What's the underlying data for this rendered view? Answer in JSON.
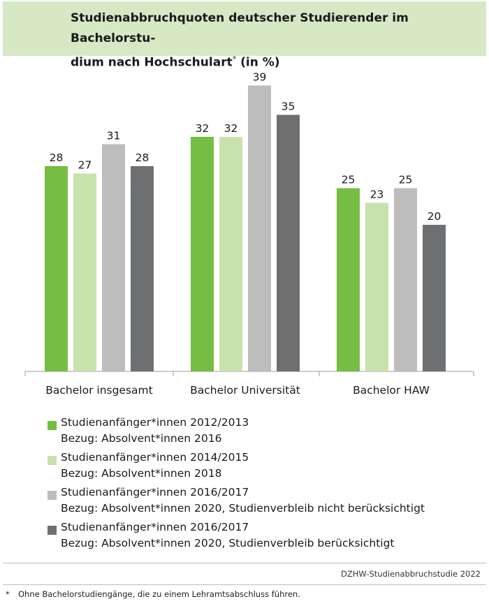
{
  "title": {
    "text": "Studienabbruchquoten deutscher Studierender im Bachelorstu-",
    "text2": "dium nach Hochschulart",
    "marker": "*",
    "suffix": " (in %)"
  },
  "chart_data": {
    "type": "bar",
    "title": "Studienabbruchquoten deutscher Studierender im Bachelorstudium nach Hochschulart* (in %)",
    "categories": [
      "Bachelor insgesamt",
      "Bachelor Universität",
      "Bachelor HAW"
    ],
    "ylim": [
      0,
      40
    ],
    "grid": false,
    "legend_position": "bottom",
    "series": [
      {
        "name": "Studienanfänger*innen 2012/2013",
        "note": "Bezug: Absolvent*innen 2016",
        "color": "#76bd43",
        "values": [
          28,
          32,
          25
        ]
      },
      {
        "name": "Studienanfänger*innen 2014/2015",
        "note": "Bezug: Absolvent*innen 2018",
        "color": "#c7e2ad",
        "values": [
          27,
          32,
          23
        ]
      },
      {
        "name": "Studienanfänger*innen 2016/2017",
        "note": "Bezug: Absolvent*innen 2020, Studienverbleib nicht berücksichtigt",
        "color": "#bdbdbd",
        "values": [
          31,
          39,
          25
        ]
      },
      {
        "name": "Studienanfänger*innen 2016/2017",
        "note": "Bezug: Absolvent*innen 2020, Studienverbleib berücksichtigt",
        "color": "#6d6f71",
        "values": [
          28,
          35,
          20
        ]
      }
    ]
  },
  "source": "DZHW-Studienabbruchstudie 2022",
  "footnote": {
    "marker": "*",
    "text": "Ohne Bachelorstudiengänge, die zu einem Lehramtsabschluss führen."
  }
}
